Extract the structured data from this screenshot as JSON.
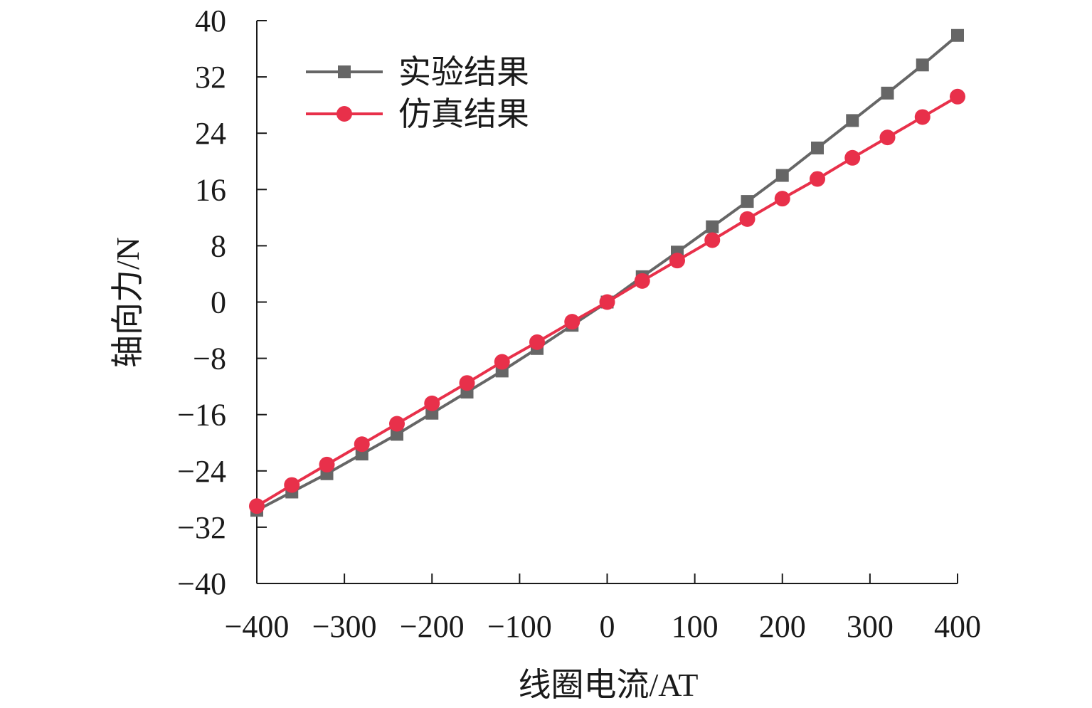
{
  "chart_data": {
    "type": "line",
    "title": "",
    "xlabel": "线圈电流/AT",
    "ylabel": "轴向力/N",
    "xlim": [
      -400,
      400
    ],
    "ylim": [
      -40,
      40
    ],
    "xticks": [
      -400,
      -300,
      -200,
      -100,
      0,
      100,
      200,
      300,
      400
    ],
    "xtick_labels": [
      "−400",
      "−300",
      "−200",
      "−100",
      "0",
      "100",
      "200",
      "300",
      "400"
    ],
    "yticks": [
      40,
      32,
      24,
      16,
      8,
      0,
      -8,
      -16,
      -24,
      -32,
      -40
    ],
    "ytick_labels": [
      "40",
      "32",
      "24",
      "16",
      "8",
      "0",
      "−8",
      "−16",
      "−24",
      "−32",
      "−40"
    ],
    "grid": false,
    "legend_position": "top-left",
    "x": [
      -400,
      -360,
      -320,
      -280,
      -240,
      -200,
      -160,
      -120,
      -80,
      -40,
      0,
      40,
      80,
      120,
      160,
      200,
      240,
      280,
      320,
      360,
      400
    ],
    "series": [
      {
        "name": "实验结果",
        "color": "#666666",
        "marker": "square",
        "values": [
          -29.6,
          -27.0,
          -24.4,
          -21.6,
          -18.8,
          -15.8,
          -12.8,
          -9.8,
          -6.6,
          -3.3,
          0,
          3.6,
          7.1,
          10.7,
          14.3,
          18.0,
          21.9,
          25.8,
          29.7,
          33.7,
          37.9
        ]
      },
      {
        "name": "仿真结果",
        "color": "#e8304a",
        "marker": "circle",
        "values": [
          -29.0,
          -26.0,
          -23.1,
          -20.2,
          -17.3,
          -14.4,
          -11.5,
          -8.5,
          -5.7,
          -2.8,
          0,
          3.0,
          5.9,
          8.8,
          11.8,
          14.7,
          17.5,
          20.5,
          23.4,
          26.3,
          29.2
        ]
      }
    ]
  }
}
